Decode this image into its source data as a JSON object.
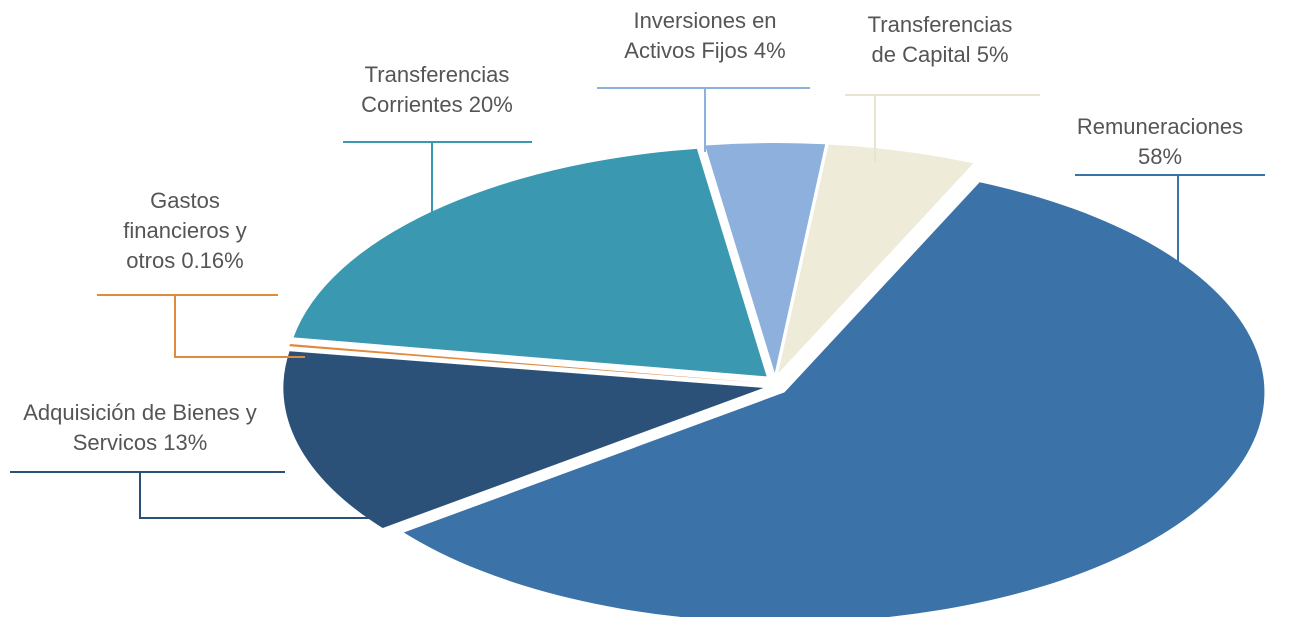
{
  "chart_data": {
    "type": "pie",
    "categories": [
      "Remuneraciones",
      "Adquisición de Bienes y Servicos",
      "Gastos financieros  y otros",
      "Transferencias Corrientes",
      "Inversiones en Activos Fijos",
      "Transferencias de Capital"
    ],
    "values": [
      58,
      13,
      0.16,
      20,
      4,
      5
    ],
    "value_labels": [
      "58%",
      "13%",
      "0.16%",
      "20%",
      "4%",
      "5%"
    ],
    "colors": [
      "#3b72a8",
      "#2c5179",
      "#e08a3c",
      "#3a98b0",
      "#8db0dc",
      "#efebd9"
    ]
  }
}
